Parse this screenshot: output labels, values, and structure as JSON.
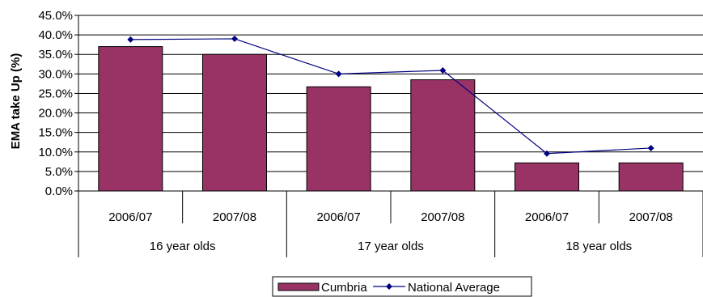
{
  "chart_data": {
    "type": "bar",
    "title": "",
    "ylabel": "EMA take Up (%)",
    "ylim": [
      0,
      45
    ],
    "ytick_step": 5,
    "ytick_labels": [
      "0.0%",
      "5.0%",
      "10.0%",
      "15.0%",
      "20.0%",
      "25.0%",
      "30.0%",
      "35.0%",
      "40.0%",
      "45.0%"
    ],
    "grid": true,
    "legend_position": "bottom",
    "categories": [
      "2006/07",
      "2007/08",
      "2006/07",
      "2007/08",
      "2006/07",
      "2007/08"
    ],
    "groups": [
      {
        "label": "16 year olds",
        "span": 2
      },
      {
        "label": "17 year olds",
        "span": 2
      },
      {
        "label": "18 year olds",
        "span": 2
      }
    ],
    "series": [
      {
        "name": "Cumbria",
        "type": "bar",
        "color": "#993366",
        "values": [
          37.0,
          35.0,
          26.7,
          28.5,
          7.2,
          7.2
        ]
      },
      {
        "name": "National Average",
        "type": "line",
        "color": "#000080",
        "marker": "diamond",
        "values": [
          38.8,
          39.0,
          30.0,
          30.9,
          9.6,
          11.0
        ]
      }
    ]
  }
}
